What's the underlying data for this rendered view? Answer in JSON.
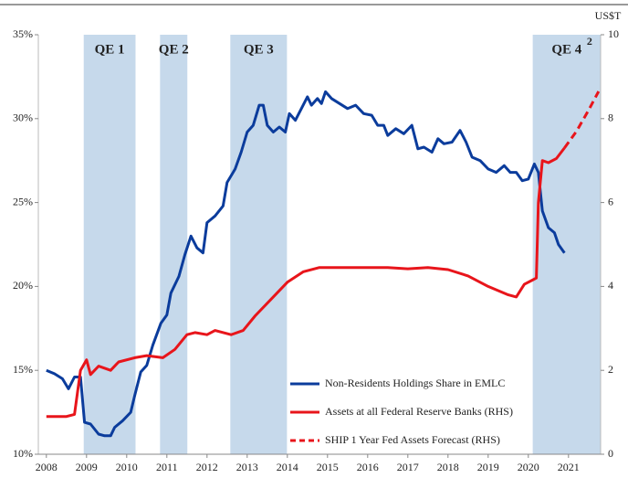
{
  "chart_data": {
    "type": "line",
    "y_unit_label": "US$T",
    "xlim": [
      2007.8,
      2021.8
    ],
    "xticks": [
      2008,
      2009,
      2010,
      2011,
      2012,
      2013,
      2014,
      2015,
      2016,
      2017,
      2018,
      2019,
      2020,
      2021
    ],
    "ylim": [
      10,
      35
    ],
    "yticks": [
      {
        "value": 10,
        "label": "10%"
      },
      {
        "value": 15,
        "label": "15%"
      },
      {
        "value": 20,
        "label": "20%"
      },
      {
        "value": 25,
        "label": "25%"
      },
      {
        "value": 30,
        "label": "30%"
      },
      {
        "value": 35,
        "label": "35%"
      }
    ],
    "y2lim": [
      0,
      10
    ],
    "y2ticks": [
      0,
      2,
      4,
      6,
      8,
      10
    ],
    "regions": [
      {
        "label": "QE 1",
        "start": 2008.93,
        "end": 2010.22
      },
      {
        "label": "QE 2",
        "start": 2010.83,
        "end": 2011.51
      },
      {
        "label": "QE 3",
        "start": 2012.58,
        "end": 2013.99
      },
      {
        "label": "QE 4",
        "superscript": "2",
        "start": 2020.11,
        "end": 2021.8
      }
    ],
    "region_color": "#c6d9eb",
    "legend": "lower right",
    "series": [
      {
        "name": "Non-Residents Holdings Share in EMLC",
        "color": "#0b3c9c",
        "dash": false,
        "x": [
          2008.0,
          2008.2,
          2008.4,
          2008.55,
          2008.7,
          2008.85,
          2008.95,
          2009.1,
          2009.3,
          2009.45,
          2009.6,
          2009.7,
          2009.9,
          2010.1,
          2010.2,
          2010.35,
          2010.5,
          2010.65,
          2010.85,
          2011.0,
          2011.1,
          2011.3,
          2011.45,
          2011.6,
          2011.75,
          2011.9,
          2012.0,
          2012.2,
          2012.4,
          2012.5,
          2012.7,
          2012.85,
          2013.0,
          2013.15,
          2013.3,
          2013.4,
          2013.5,
          2013.65,
          2013.8,
          2013.95,
          2014.05,
          2014.2,
          2014.35,
          2014.5,
          2014.6,
          2014.75,
          2014.85,
          2014.95,
          2015.1,
          2015.3,
          2015.5,
          2015.7,
          2015.9,
          2016.1,
          2016.25,
          2016.4,
          2016.5,
          2016.7,
          2016.9,
          2017.1,
          2017.25,
          2017.4,
          2017.6,
          2017.75,
          2017.9,
          2018.1,
          2018.3,
          2018.45,
          2018.6,
          2018.8,
          2019.0,
          2019.2,
          2019.4,
          2019.55,
          2019.7,
          2019.85,
          2020.0,
          2020.15,
          2020.25,
          2020.35,
          2020.5,
          2020.65,
          2020.75,
          2020.9
        ],
        "values": [
          15.0,
          14.8,
          14.5,
          13.9,
          14.6,
          14.6,
          11.9,
          11.8,
          11.2,
          11.1,
          11.1,
          11.6,
          12.0,
          12.5,
          13.5,
          14.9,
          15.3,
          16.5,
          17.8,
          18.3,
          19.6,
          20.6,
          21.9,
          23.0,
          22.3,
          22.0,
          23.8,
          24.2,
          24.8,
          26.2,
          27.0,
          28.0,
          29.2,
          29.6,
          30.8,
          30.8,
          29.6,
          29.2,
          29.5,
          29.2,
          30.3,
          29.9,
          30.6,
          31.3,
          30.8,
          31.2,
          30.9,
          31.6,
          31.2,
          30.9,
          30.6,
          30.8,
          30.3,
          30.2,
          29.6,
          29.6,
          29.0,
          29.4,
          29.1,
          29.6,
          28.2,
          28.3,
          28.0,
          28.8,
          28.5,
          28.6,
          29.3,
          28.6,
          27.7,
          27.5,
          27.0,
          26.8,
          27.2,
          26.8,
          26.8,
          26.3,
          26.4,
          27.3,
          26.8,
          24.5,
          23.5,
          23.2,
          22.5,
          22.0
        ]
      },
      {
        "name": "Assets at all Federal Reserve Banks  (RHS)",
        "color": "#e8151b",
        "dash": false,
        "axis": "y2",
        "x": [
          2008.0,
          2008.5,
          2008.7,
          2008.85,
          2009.0,
          2009.1,
          2009.3,
          2009.6,
          2009.8,
          2010.2,
          2010.5,
          2010.9,
          2011.2,
          2011.5,
          2011.7,
          2012.0,
          2012.2,
          2012.6,
          2012.9,
          2013.2,
          2013.6,
          2014.0,
          2014.4,
          2014.8,
          2015.5,
          2016.5,
          2017.0,
          2017.5,
          2018.0,
          2018.5,
          2019.0,
          2019.5,
          2019.7,
          2019.9,
          2020.1,
          2020.2,
          2020.25,
          2020.35,
          2020.5,
          2020.7,
          2020.9
        ],
        "values": [
          0.9,
          0.9,
          0.95,
          2.0,
          2.25,
          1.9,
          2.1,
          2.0,
          2.2,
          2.3,
          2.35,
          2.3,
          2.5,
          2.85,
          2.9,
          2.85,
          2.95,
          2.85,
          2.95,
          3.3,
          3.7,
          4.1,
          4.35,
          4.45,
          4.45,
          4.45,
          4.42,
          4.45,
          4.4,
          4.25,
          4.0,
          3.8,
          3.75,
          4.05,
          4.15,
          4.2,
          6.0,
          7.0,
          6.95,
          7.05,
          7.3
        ]
      },
      {
        "name": "SHIP 1 Year Fed Assets Forecast (RHS)",
        "color": "#e8151b",
        "dash": true,
        "axis": "y2",
        "x": [
          2020.9,
          2021.2,
          2021.5,
          2021.75
        ],
        "values": [
          7.3,
          7.7,
          8.2,
          8.65
        ]
      }
    ]
  }
}
